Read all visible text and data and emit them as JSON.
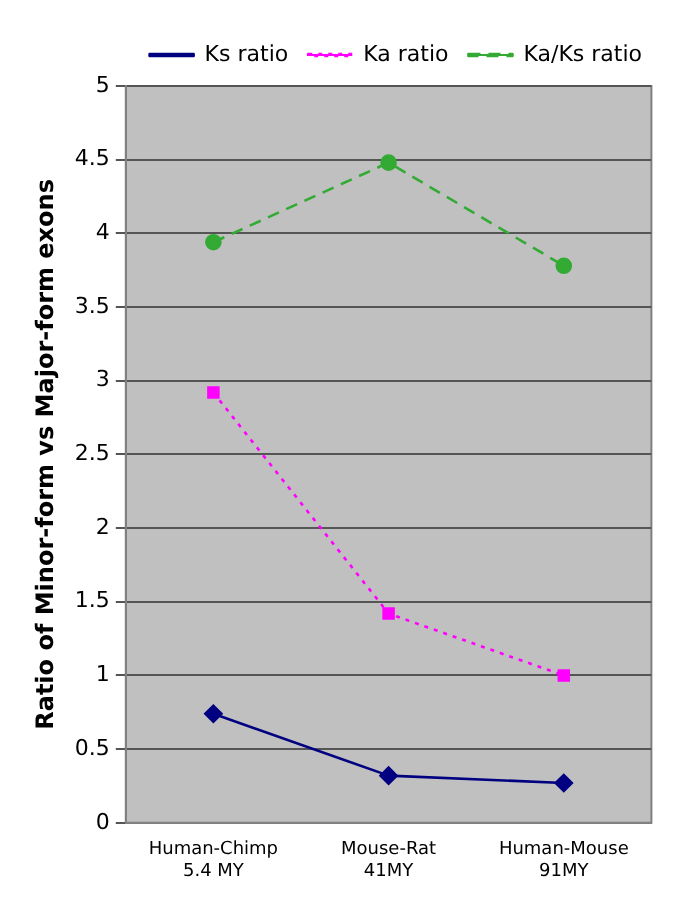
{
  "chart_data": {
    "type": "line",
    "ylabel": "Ratio of Minor-form vs Major-form exons",
    "categories": [
      "Human-Chimp\n5.4 MY",
      "Mouse-Rat\n41MY",
      "Human-Mouse\n91MY"
    ],
    "series": [
      {
        "name": "Ks ratio",
        "color": "#000080",
        "values": [
          0.74,
          0.32,
          0.27
        ],
        "marker": "diamond",
        "line_style": "solid"
      },
      {
        "name": "Ka ratio",
        "color": "#ff00ff",
        "values": [
          2.92,
          1.42,
          1.0
        ],
        "marker": "square",
        "line_style": "dotted"
      },
      {
        "name": "Ka/Ks ratio",
        "color": "#33aa33",
        "values": [
          3.94,
          4.48,
          3.78
        ],
        "marker": "circle",
        "line_style": "dashed"
      }
    ],
    "ylim": [
      0,
      5
    ],
    "yticks": [
      0,
      0.5,
      1,
      1.5,
      2,
      2.5,
      3,
      3.5,
      4,
      4.5,
      5
    ],
    "grid": "y",
    "legend": "top right"
  }
}
